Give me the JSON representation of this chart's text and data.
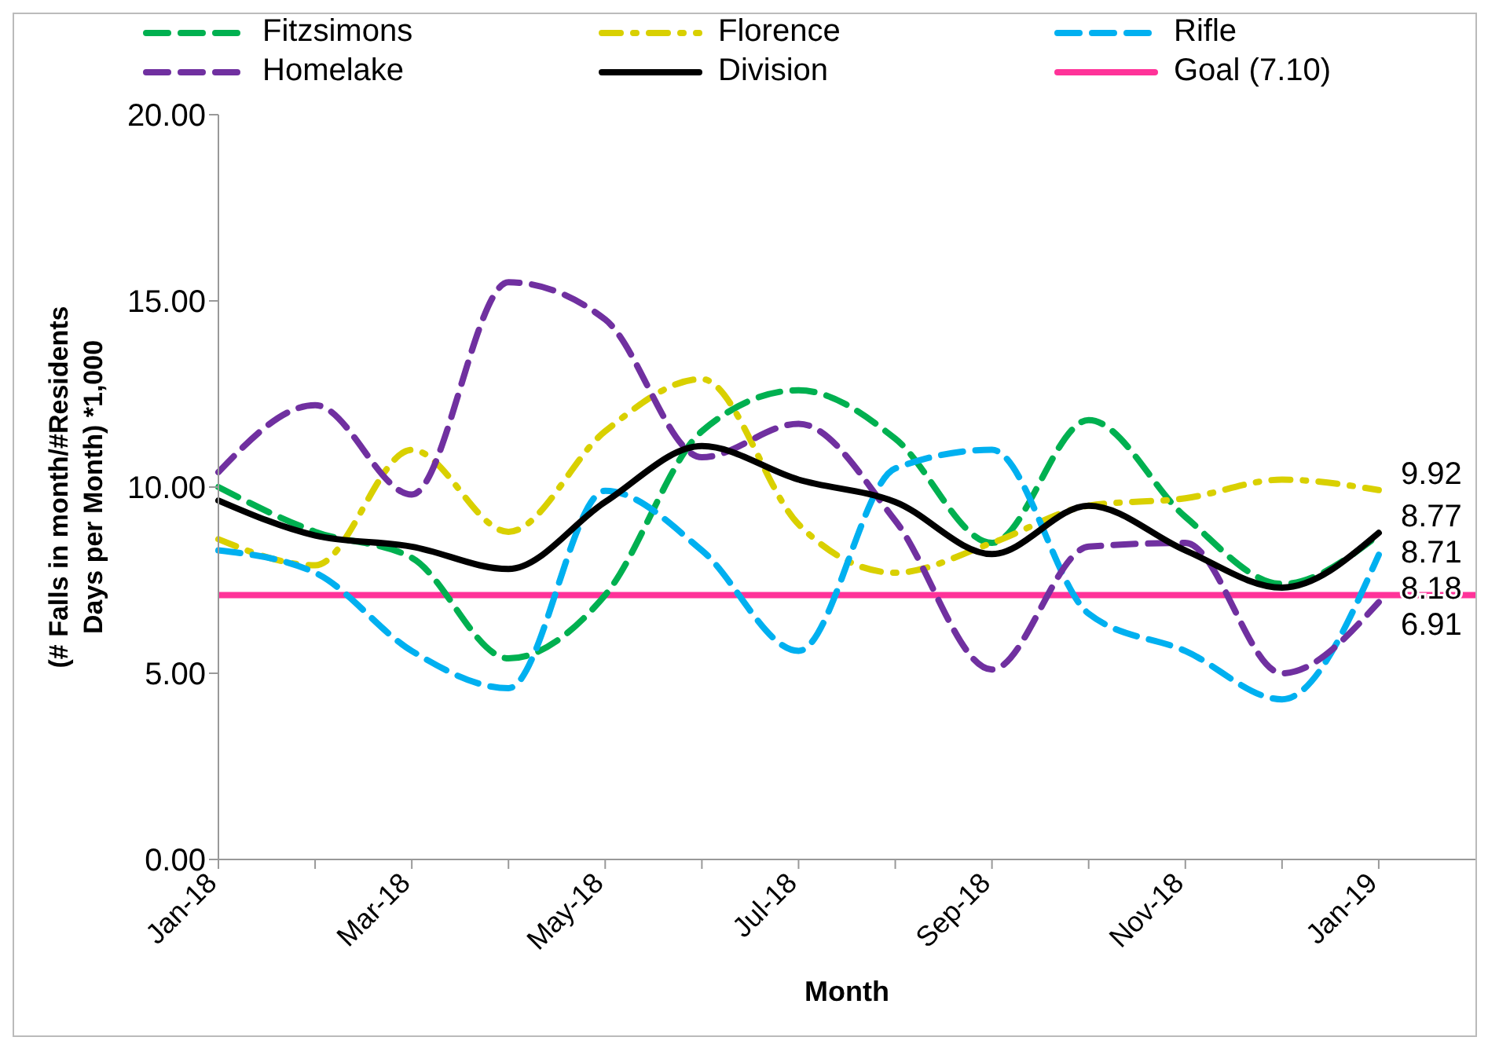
{
  "chart_data": {
    "type": "line",
    "xlabel": "Month",
    "ylabel": "(# Falls in month/#Residents Days per Month) *1,000",
    "categories": [
      "Jan-18",
      null,
      "Mar-18",
      null,
      "May-18",
      null,
      "Jul-18",
      null,
      "Sep-18",
      null,
      "Nov-18",
      null,
      "Jan-19"
    ],
    "series": [
      {
        "name": "Fitzsimons",
        "color": "#00b050",
        "line_style": "dashed",
        "values": [
          10.0,
          8.8,
          8.1,
          5.4,
          7.1,
          11.5,
          12.6,
          11.3,
          8.5,
          11.8,
          9.2,
          7.4,
          8.71
        ],
        "value_labels": [
          null,
          null,
          null,
          null,
          null,
          null,
          null,
          null,
          null,
          null,
          null,
          null,
          "8.71"
        ]
      },
      {
        "name": "Florence",
        "color": "#d9d000",
        "line_style": "dotted",
        "values": [
          8.6,
          7.9,
          11.0,
          8.8,
          11.5,
          12.9,
          9.0,
          7.7,
          8.5,
          9.5,
          9.7,
          10.2,
          9.92
        ],
        "value_labels": [
          null,
          null,
          null,
          null,
          null,
          null,
          null,
          null,
          null,
          null,
          null,
          null,
          "9.92"
        ]
      },
      {
        "name": "Rifle",
        "color": "#00b0f0",
        "line_style": "dashed",
        "values": [
          8.3,
          7.7,
          5.6,
          4.6,
          9.9,
          8.3,
          5.6,
          10.5,
          11.0,
          6.6,
          5.6,
          4.3,
          8.18
        ],
        "value_labels": [
          null,
          null,
          null,
          null,
          null,
          null,
          null,
          null,
          null,
          null,
          null,
          null,
          "8.18"
        ]
      },
      {
        "name": "Homelake",
        "color": "#7030a0",
        "line_style": "dashed",
        "values": [
          10.4,
          12.2,
          9.8,
          15.5,
          14.5,
          10.8,
          11.7,
          9.1,
          5.1,
          8.4,
          8.5,
          5.0,
          6.91
        ],
        "value_labels": [
          null,
          null,
          null,
          null,
          null,
          null,
          null,
          null,
          null,
          null,
          null,
          null,
          "6.91"
        ]
      },
      {
        "name": "Division",
        "color": "#000000",
        "line_style": "solid",
        "values": [
          9.64,
          8.7,
          8.4,
          7.8,
          9.6,
          11.1,
          10.2,
          9.6,
          8.2,
          9.5,
          8.3,
          7.3,
          8.77
        ],
        "value_labels": [
          null,
          null,
          null,
          null,
          null,
          null,
          null,
          null,
          null,
          null,
          null,
          null,
          "8.77"
        ]
      }
    ],
    "ref_lines": [
      {
        "axis": "y",
        "value": 7.1,
        "label": "Goal (7.10)",
        "color": "#ff3399",
        "line_style": "solid"
      }
    ],
    "ylim": [
      0,
      20
    ],
    "yticks": [
      {
        "value": 0,
        "label": "0.00"
      },
      {
        "value": 5,
        "label": "5.00"
      },
      {
        "value": 10,
        "label": "10.00"
      },
      {
        "value": 15,
        "label": "15.00"
      },
      {
        "value": 20,
        "label": "20.00"
      }
    ],
    "grid": false,
    "legend": "top",
    "marker": "none"
  }
}
